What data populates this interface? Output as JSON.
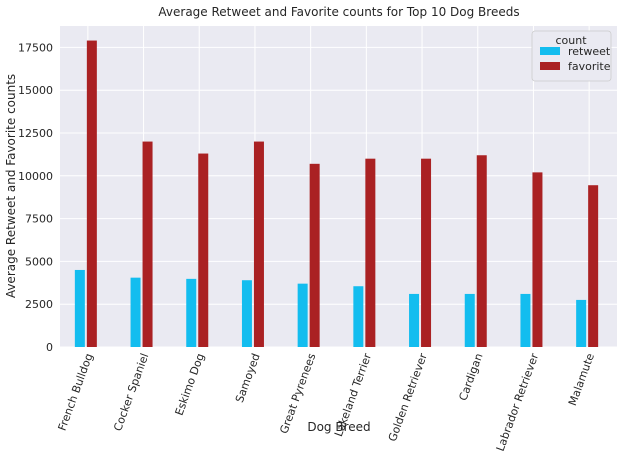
{
  "chart_data": {
    "type": "bar",
    "title": "Average Retweet and Favorite counts for Top 10 Dog Breeds",
    "xlabel": "Dog Breed",
    "ylabel": "Average Retweet and Favorite counts",
    "categories": [
      "French Bulldog",
      "Cocker Spaniel",
      "Eskimo Dog",
      "Samoyed",
      "Great Pyrenees",
      "Lakeland Terrier",
      "Golden Retriever",
      "Cardigan",
      "Labrador Retriever",
      "Malamute"
    ],
    "series": [
      {
        "name": "retweet",
        "color": "#13bdef",
        "values": [
          4500,
          4050,
          3980,
          3900,
          3700,
          3550,
          3100,
          3100,
          3100,
          2750
        ]
      },
      {
        "name": "favorite",
        "color": "#aa2123",
        "values": [
          17900,
          12000,
          11300,
          12000,
          10700,
          11000,
          11000,
          11200,
          10200,
          9450
        ]
      }
    ],
    "ylim": [
      0,
      18750
    ],
    "yticks": [
      0,
      2500,
      5000,
      7500,
      10000,
      12500,
      15000,
      17500
    ],
    "ytick_labels": [
      "0",
      "2500",
      "5000",
      "7500",
      "10000",
      "12500",
      "15000",
      "17500"
    ],
    "grid": true,
    "background": "#eaeaf2",
    "legend": {
      "title": "count",
      "position": "top-right"
    }
  }
}
